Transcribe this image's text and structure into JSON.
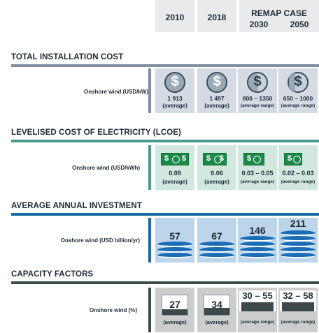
{
  "years": {
    "y2010": "2010",
    "y2018": "2018",
    "remap": "REMAP CASE",
    "y2030": "2030",
    "y2050": "2050"
  },
  "colors": {
    "cost": "#7f8fa3",
    "lcoe": "#4a9b8a",
    "investment": "#1a6aa8",
    "capacity": "#3c4a4c"
  },
  "sections": [
    {
      "title": "TOTAL INSTALLATION COST",
      "row_label": "Onshore wind (USD/kW)",
      "icon": "dollar-coin-icon",
      "cells": [
        {
          "value": "1 913",
          "note": "(average)"
        },
        {
          "value": "1 497",
          "note": "(average)"
        },
        {
          "value": "800 – 1350",
          "note": "(average range)"
        },
        {
          "value": "650 – 1000",
          "note": "(average range)"
        }
      ]
    },
    {
      "title": "LEVELISED COST OF ELECTRICITY (LCOE)",
      "row_label": "Onshore wind (USD/kWh)",
      "icon": "banknote-icon",
      "cells": [
        {
          "value": "0.08",
          "note": "(average)"
        },
        {
          "value": "0.06",
          "note": "(average)"
        },
        {
          "value": "0.03 – 0.05",
          "note": "(average range)"
        },
        {
          "value": "0.02 – 0.03",
          "note": "(average range)"
        }
      ]
    },
    {
      "title": "AVERAGE ANNUAL INVESTMENT",
      "row_label": "Onshore wind (USD billion/yr)",
      "icon": "coin-stack-icon",
      "cells": [
        {
          "value": "57"
        },
        {
          "value": "67"
        },
        {
          "value": "146"
        },
        {
          "value": "211"
        }
      ]
    },
    {
      "title": "CAPACITY FACTORS",
      "row_label": "Onshore wind (%)",
      "icon": "capacity-gauge-icon",
      "cells": [
        {
          "value": "27",
          "note": "(average)",
          "level": 0.27
        },
        {
          "value": "34",
          "note": "(average)",
          "level": 0.34
        },
        {
          "value": "30 – 55",
          "note": "(average range)",
          "level": 0.42
        },
        {
          "value": "32 – 58",
          "note": "(average range)",
          "level": 0.45
        }
      ]
    }
  ]
}
